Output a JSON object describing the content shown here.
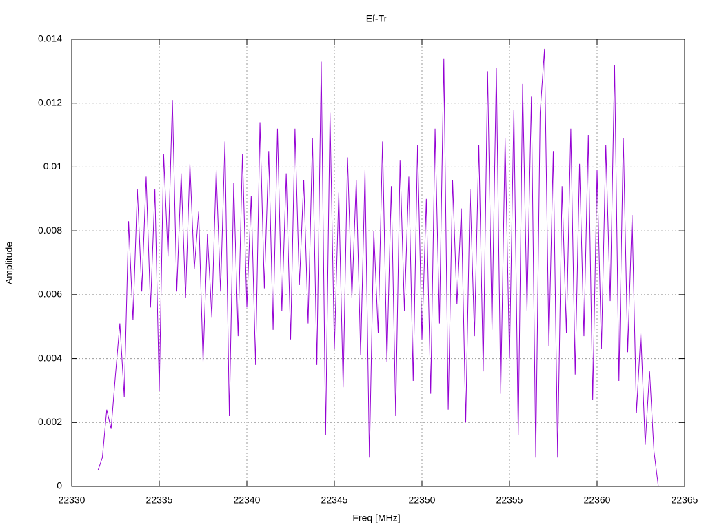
{
  "chart_data": {
    "type": "line",
    "title": "Ef-Tr",
    "x_label": "Freq [MHz]",
    "y_label": "Amplitude",
    "x": [
      22331.5,
      22331.75,
      22332,
      22332.25,
      22332.5,
      22332.75,
      22333,
      22333.25,
      22333.5,
      22333.75,
      22334,
      22334.25,
      22334.5,
      22334.75,
      22335,
      22335.25,
      22335.5,
      22335.75,
      22336,
      22336.25,
      22336.5,
      22336.75,
      22337,
      22337.25,
      22337.5,
      22337.75,
      22338,
      22338.25,
      22338.5,
      22338.75,
      22339,
      22339.25,
      22339.5,
      22339.75,
      22340,
      22340.25,
      22340.5,
      22340.75,
      22341,
      22341.25,
      22341.5,
      22341.75,
      22342,
      22342.25,
      22342.5,
      22342.75,
      22343,
      22343.25,
      22343.5,
      22343.75,
      22344,
      22344.25,
      22344.5,
      22344.75,
      22345,
      22345.25,
      22345.5,
      22345.75,
      22346,
      22346.25,
      22346.5,
      22346.75,
      22347,
      22347.25,
      22347.5,
      22347.75,
      22348,
      22348.25,
      22348.5,
      22348.75,
      22349,
      22349.25,
      22349.5,
      22349.75,
      22350,
      22350.25,
      22350.5,
      22350.75,
      22351,
      22351.25,
      22351.5,
      22351.75,
      22352,
      22352.25,
      22352.5,
      22352.75,
      22353,
      22353.25,
      22353.5,
      22353.75,
      22354,
      22354.25,
      22354.5,
      22354.75,
      22355,
      22355.25,
      22355.5,
      22355.75,
      22356,
      22356.25,
      22356.5,
      22356.75,
      22357,
      22357.25,
      22357.5,
      22357.75,
      22358,
      22358.25,
      22358.5,
      22358.75,
      22359,
      22359.25,
      22359.5,
      22359.75,
      22360,
      22360.25,
      22360.5,
      22360.75,
      22361,
      22361.25,
      22361.5,
      22361.75,
      22362,
      22362.25,
      22362.5,
      22362.75,
      22363,
      22363.25,
      22363.5
    ],
    "series": [
      {
        "name": "Ef-Tr",
        "color": "#9400d3",
        "values": [
          0.0005,
          0.0009,
          0.0024,
          0.0018,
          0.0035,
          0.0051,
          0.0028,
          0.0083,
          0.0052,
          0.0093,
          0.0061,
          0.0097,
          0.0056,
          0.0093,
          0.003,
          0.0104,
          0.0072,
          0.0121,
          0.0061,
          0.0098,
          0.0059,
          0.0101,
          0.0068,
          0.0086,
          0.0039,
          0.0079,
          0.0053,
          0.0099,
          0.0061,
          0.0108,
          0.0022,
          0.0095,
          0.0047,
          0.0104,
          0.0056,
          0.0091,
          0.0038,
          0.0114,
          0.0062,
          0.0105,
          0.0049,
          0.0112,
          0.0055,
          0.0098,
          0.0046,
          0.0112,
          0.0063,
          0.0096,
          0.0051,
          0.0109,
          0.0038,
          0.0133,
          0.0016,
          0.0117,
          0.0043,
          0.0092,
          0.0031,
          0.0103,
          0.0059,
          0.0096,
          0.0041,
          0.0099,
          0.0009,
          0.008,
          0.0048,
          0.0108,
          0.0039,
          0.0094,
          0.0022,
          0.0102,
          0.0055,
          0.0097,
          0.0033,
          0.0107,
          0.0046,
          0.009,
          0.0029,
          0.0112,
          0.0051,
          0.0134,
          0.0024,
          0.0096,
          0.0057,
          0.0087,
          0.002,
          0.0093,
          0.0047,
          0.0107,
          0.0036,
          0.013,
          0.0049,
          0.0131,
          0.0029,
          0.0109,
          0.004,
          0.0118,
          0.0016,
          0.0126,
          0.0055,
          0.0122,
          0.0009,
          0.0117,
          0.0137,
          0.0044,
          0.0105,
          0.0009,
          0.0094,
          0.0048,
          0.0112,
          0.0035,
          0.0101,
          0.0047,
          0.011,
          0.0027,
          0.0099,
          0.0043,
          0.0107,
          0.0058,
          0.0132,
          0.0033,
          0.0109,
          0.0042,
          0.0085,
          0.0023,
          0.0048,
          0.0013,
          0.0036,
          0.0011,
          0
        ]
      }
    ],
    "xlim": [
      22330,
      22365
    ],
    "xticks": [
      22330,
      22335,
      22340,
      22345,
      22350,
      22355,
      22360,
      22365
    ],
    "ylim": [
      0,
      0.014
    ],
    "yticks": [
      0,
      0.002,
      0.004,
      0.006,
      0.008,
      0.01,
      0.012,
      0.014
    ],
    "grid": true
  }
}
